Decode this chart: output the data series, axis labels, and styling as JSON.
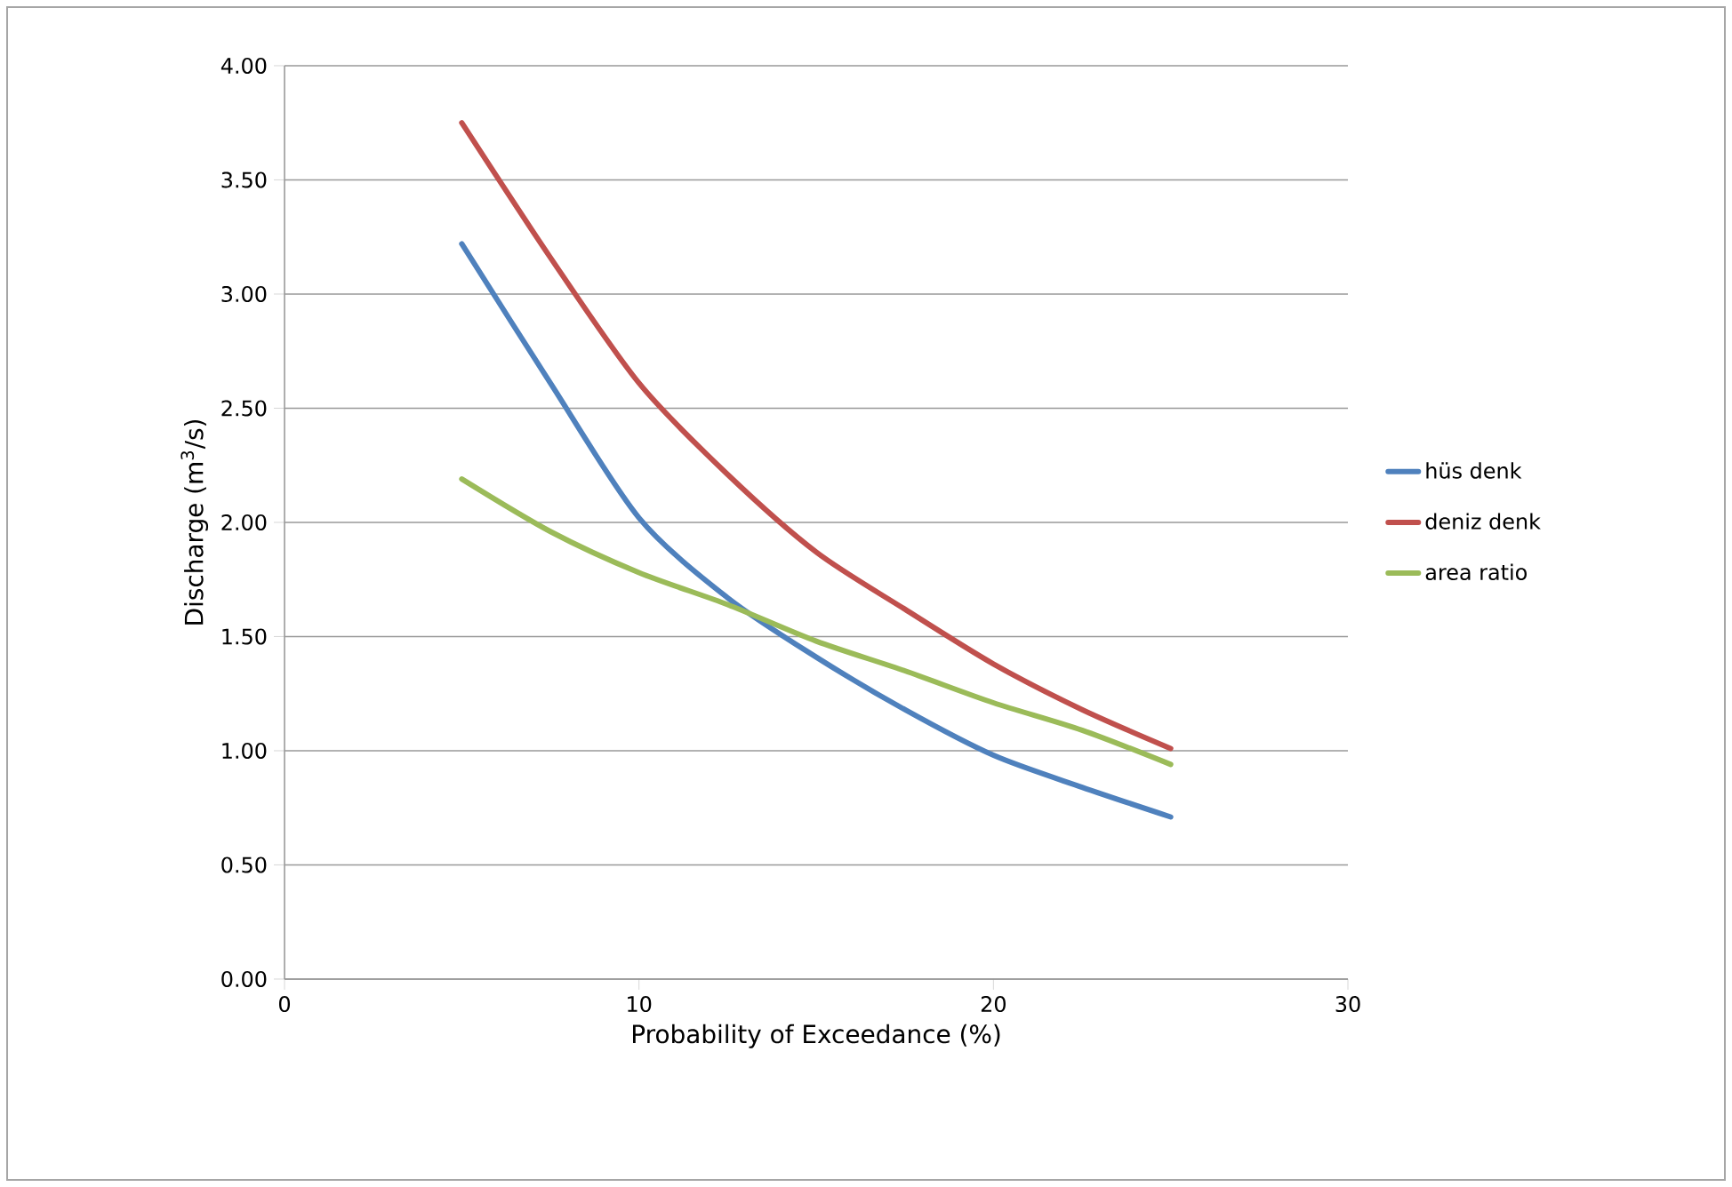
{
  "chart_data": {
    "type": "line",
    "xlabel": "Probability of Exceedance (%)",
    "ylabel": "Discharge (m$^{3}$/s)",
    "xlim": [
      0,
      30
    ],
    "xticks": [
      0,
      10,
      20,
      30
    ],
    "ylim": [
      0,
      4
    ],
    "yticks": [
      {
        "value": 0,
        "label": "0.00"
      },
      {
        "value": 0.5,
        "label": "0.50"
      },
      {
        "value": 1,
        "label": "1.00"
      },
      {
        "value": 1.5,
        "label": "1.50"
      },
      {
        "value": 2,
        "label": "2.00"
      },
      {
        "value": 2.5,
        "label": "2.50"
      },
      {
        "value": 3,
        "label": "3.00"
      },
      {
        "value": 3.5,
        "label": "3.50"
      },
      {
        "value": 4,
        "label": "4.00"
      }
    ],
    "grid": "y",
    "legend": "right",
    "marker": "none",
    "line_style": "solid",
    "x": [
      5,
      7.5,
      10,
      12.5,
      15,
      17.5,
      20,
      22.5,
      25
    ],
    "series": [
      {
        "name": "hüs denk",
        "color": "#4f81bd",
        "values": [
          3.22,
          2.61,
          2.02,
          1.67,
          1.41,
          1.18,
          0.98,
          0.84,
          0.71
        ]
      },
      {
        "name": "deniz denk",
        "color": "#c0504d",
        "values": [
          3.75,
          3.16,
          2.61,
          2.21,
          1.87,
          1.62,
          1.38,
          1.18,
          1.01
        ]
      },
      {
        "name": "area ratio",
        "color": "#9bbb59",
        "values": [
          2.19,
          1.96,
          1.78,
          1.64,
          1.48,
          1.35,
          1.21,
          1.09,
          0.94
        ]
      }
    ]
  }
}
